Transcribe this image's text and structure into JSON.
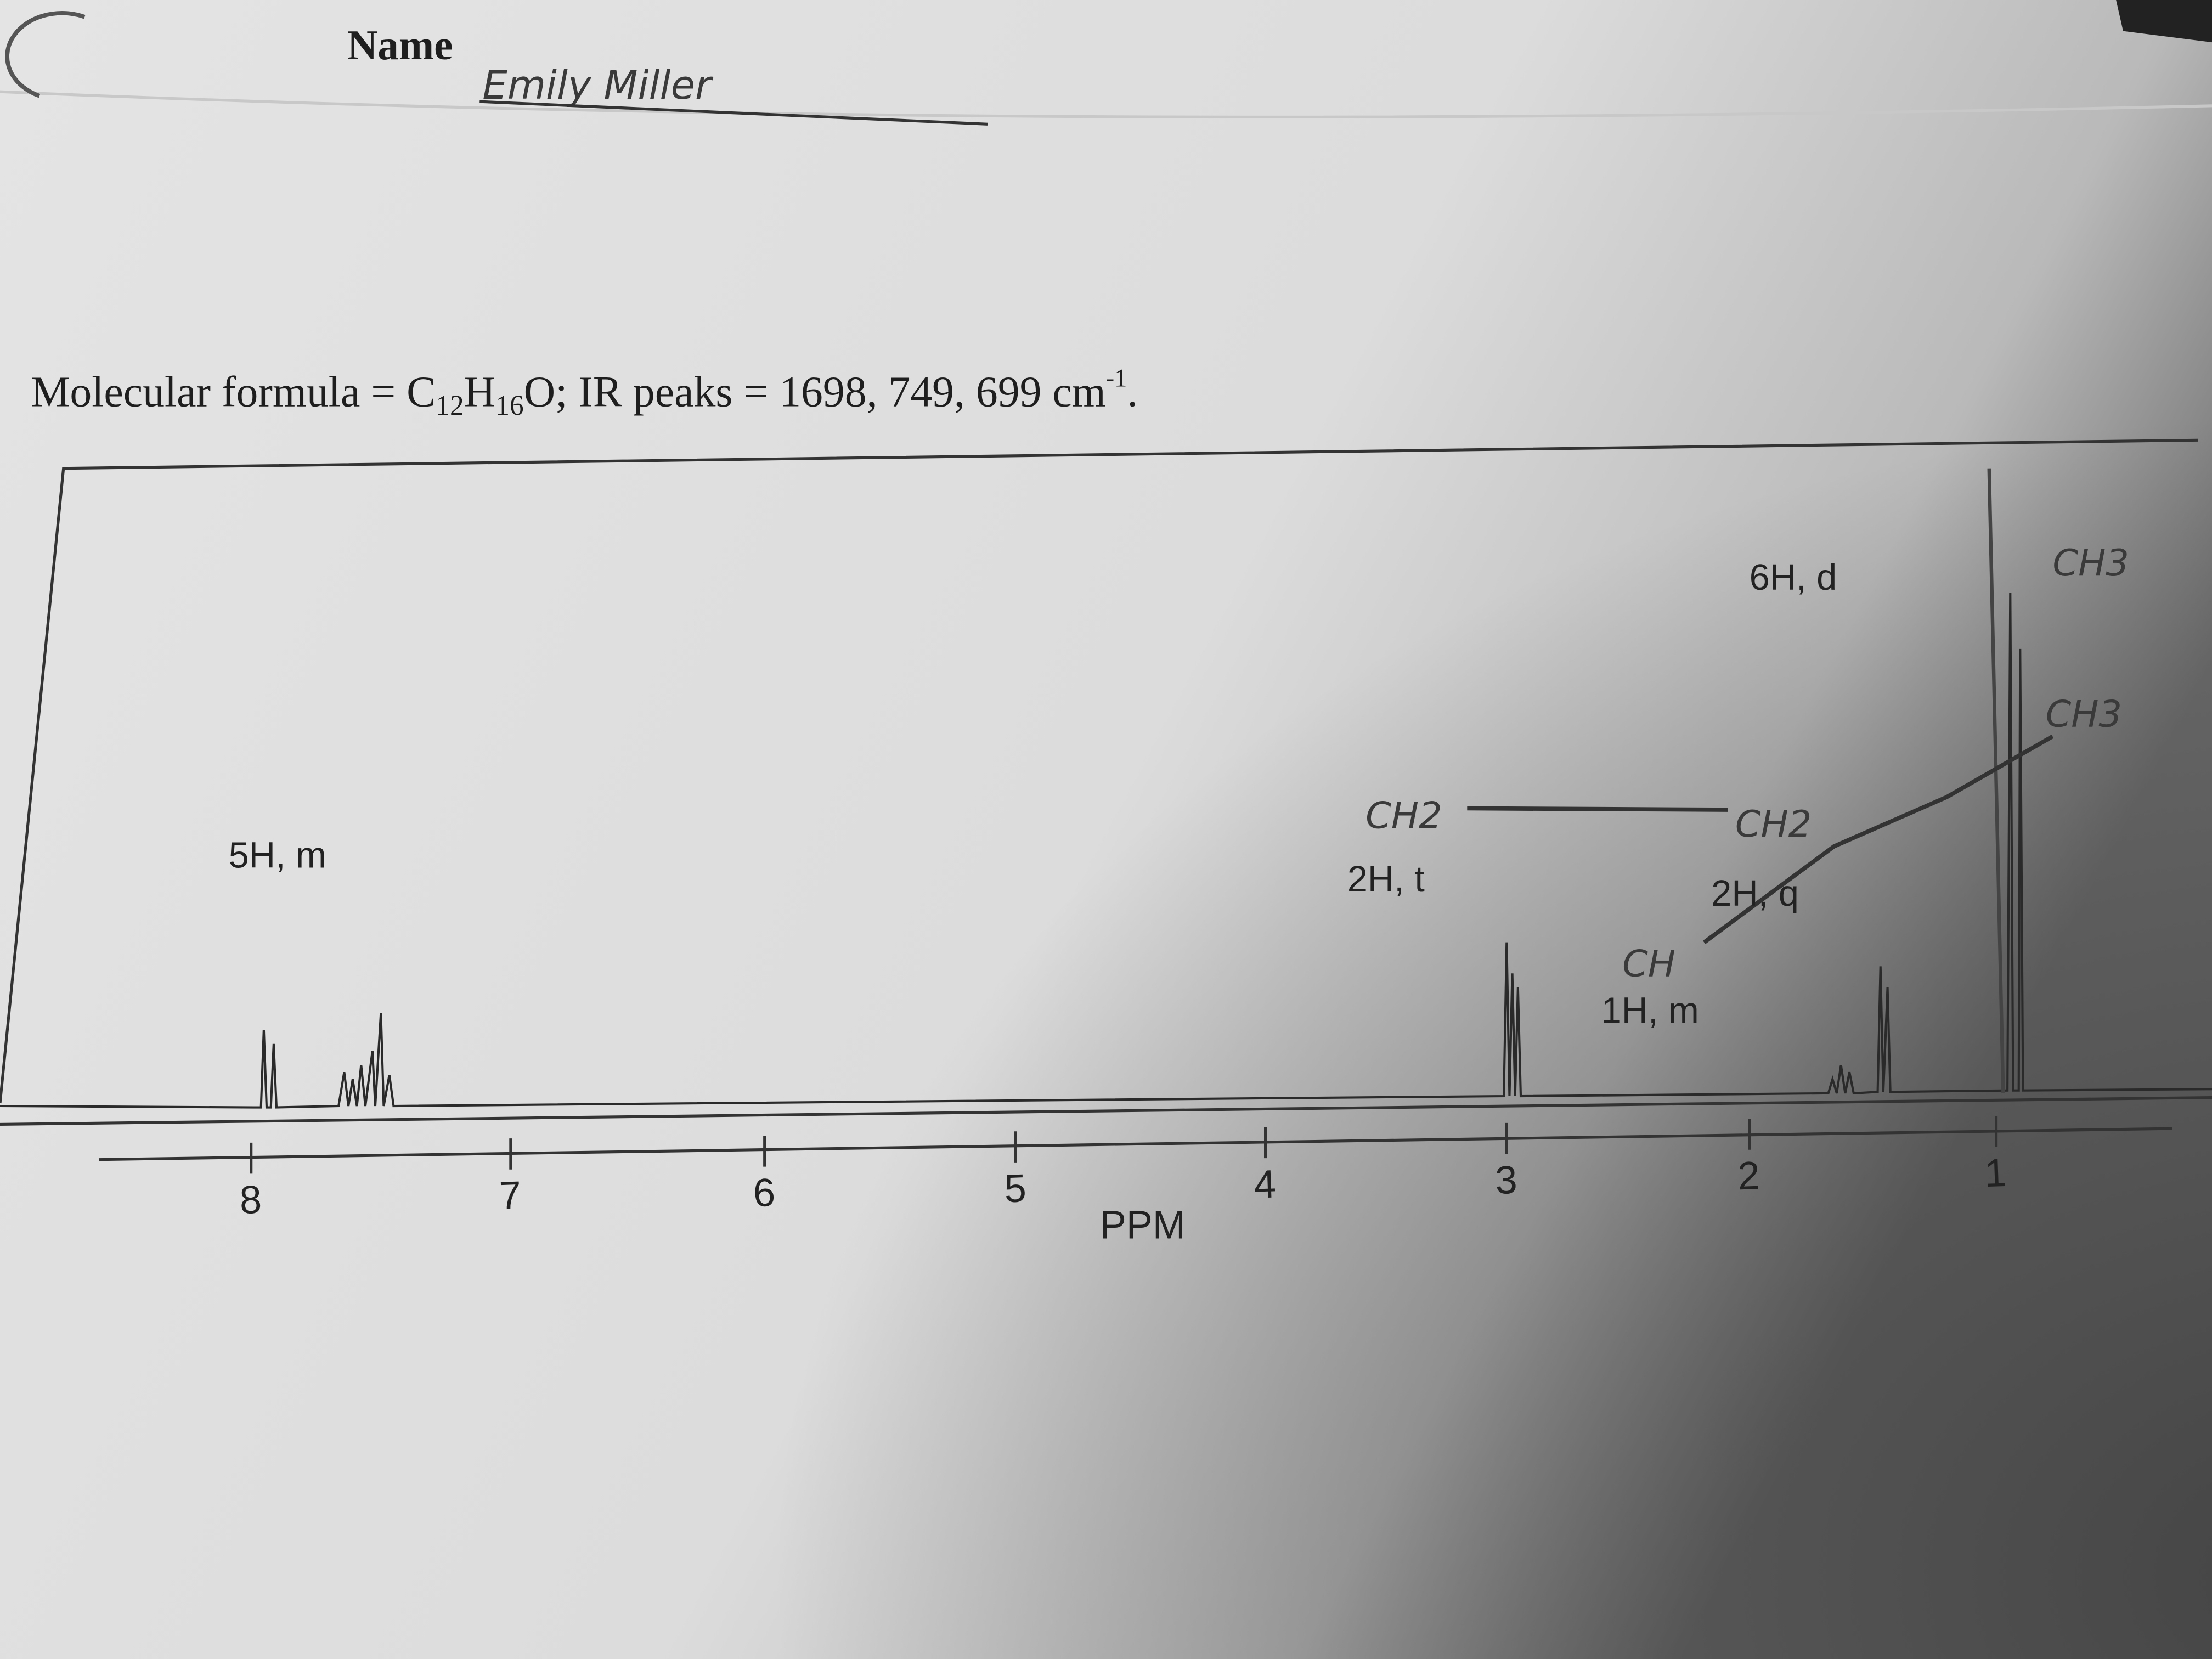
{
  "header": {
    "name_label": "Name",
    "name_handwritten": "Emily Miller"
  },
  "formula_line": [
    "Molecular formula = C",
    "12",
    "H",
    "16",
    "O; IR peaks =  1698, 749, 699 cm",
    "-1",
    "."
  ],
  "spectrum": {
    "axis_ticks": [
      8,
      7,
      6,
      5,
      4,
      3,
      2,
      1
    ],
    "axis_label": "PPM",
    "peak_labels": [
      "5H, m",
      "2H, t",
      "1H, m",
      "2H, q",
      "6H, d"
    ],
    "handwritten": [
      "CH2",
      "CH2",
      "CH",
      "CH3",
      "CH3"
    ]
  }
}
